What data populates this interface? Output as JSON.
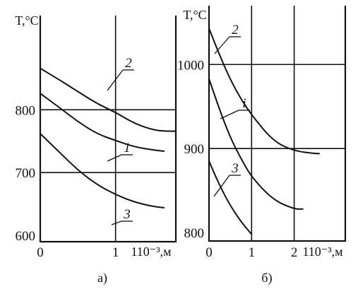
{
  "chart_data": [
    {
      "panel": "a",
      "type": "line",
      "panel_label": "а)",
      "ylabel": "T,°C",
      "xlabel": "110⁻³,м",
      "xlim": [
        0,
        1.8
      ],
      "ylim": [
        590,
        950
      ],
      "x_ticks": [
        0,
        1
      ],
      "y_ticks": [
        600,
        700,
        800
      ],
      "grid": {
        "x": [
          1
        ],
        "y": [
          700,
          800
        ]
      },
      "series": [
        {
          "name": "2",
          "x": [
            0,
            0.25,
            0.5,
            0.75,
            1.0,
            1.25,
            1.5,
            1.65,
            1.8
          ],
          "y": [
            866,
            848,
            829,
            810,
            796,
            778,
            768,
            766,
            766
          ]
        },
        {
          "name": "1",
          "x": [
            0,
            0.25,
            0.5,
            0.75,
            1.0,
            1.25,
            1.5,
            1.65
          ],
          "y": [
            826,
            804,
            781,
            762,
            751,
            741,
            736,
            734
          ]
        },
        {
          "name": "3",
          "x": [
            0,
            0.25,
            0.5,
            0.75,
            1.0,
            1.25,
            1.5,
            1.65
          ],
          "y": [
            762,
            733,
            704,
            681,
            665,
            653,
            646,
            644
          ]
        }
      ],
      "curve_labels": [
        {
          "text": "2",
          "series": "2"
        },
        {
          "text": "1",
          "series": "1"
        },
        {
          "text": "3",
          "series": "3"
        }
      ]
    },
    {
      "panel": "b",
      "type": "line",
      "panel_label": "б)",
      "ylabel": "T,°C",
      "xlabel": "110⁻³,м",
      "xlim": [
        0,
        3.2
      ],
      "ylim": [
        790,
        1070
      ],
      "x_ticks": [
        0,
        1,
        2
      ],
      "y_ticks": [
        800,
        900,
        1000
      ],
      "grid": {
        "x": [
          1,
          2
        ],
        "y": [
          900,
          1000
        ]
      },
      "series": [
        {
          "name": "2",
          "x": [
            0,
            0.25,
            0.5,
            0.75,
            1.0,
            1.5,
            2.0,
            2.5,
            2.6
          ],
          "y": [
            1043,
            1011,
            982,
            959,
            940,
            909,
            897,
            894,
            894
          ]
        },
        {
          "name": "1",
          "x": [
            0,
            0.25,
            0.5,
            0.75,
            1.0,
            1.5,
            2.0,
            2.2
          ],
          "y": [
            983,
            946,
            913,
            888,
            866,
            839,
            828,
            828
          ]
        },
        {
          "name": "3",
          "x": [
            0,
            0.25,
            0.5,
            0.75,
            1.0
          ],
          "y": [
            885,
            856,
            832,
            813,
            798
          ]
        }
      ],
      "curve_labels": [
        {
          "text": "2",
          "series": "2"
        },
        {
          "text": "i",
          "series": "1"
        },
        {
          "text": "3",
          "series": "3"
        }
      ]
    }
  ]
}
